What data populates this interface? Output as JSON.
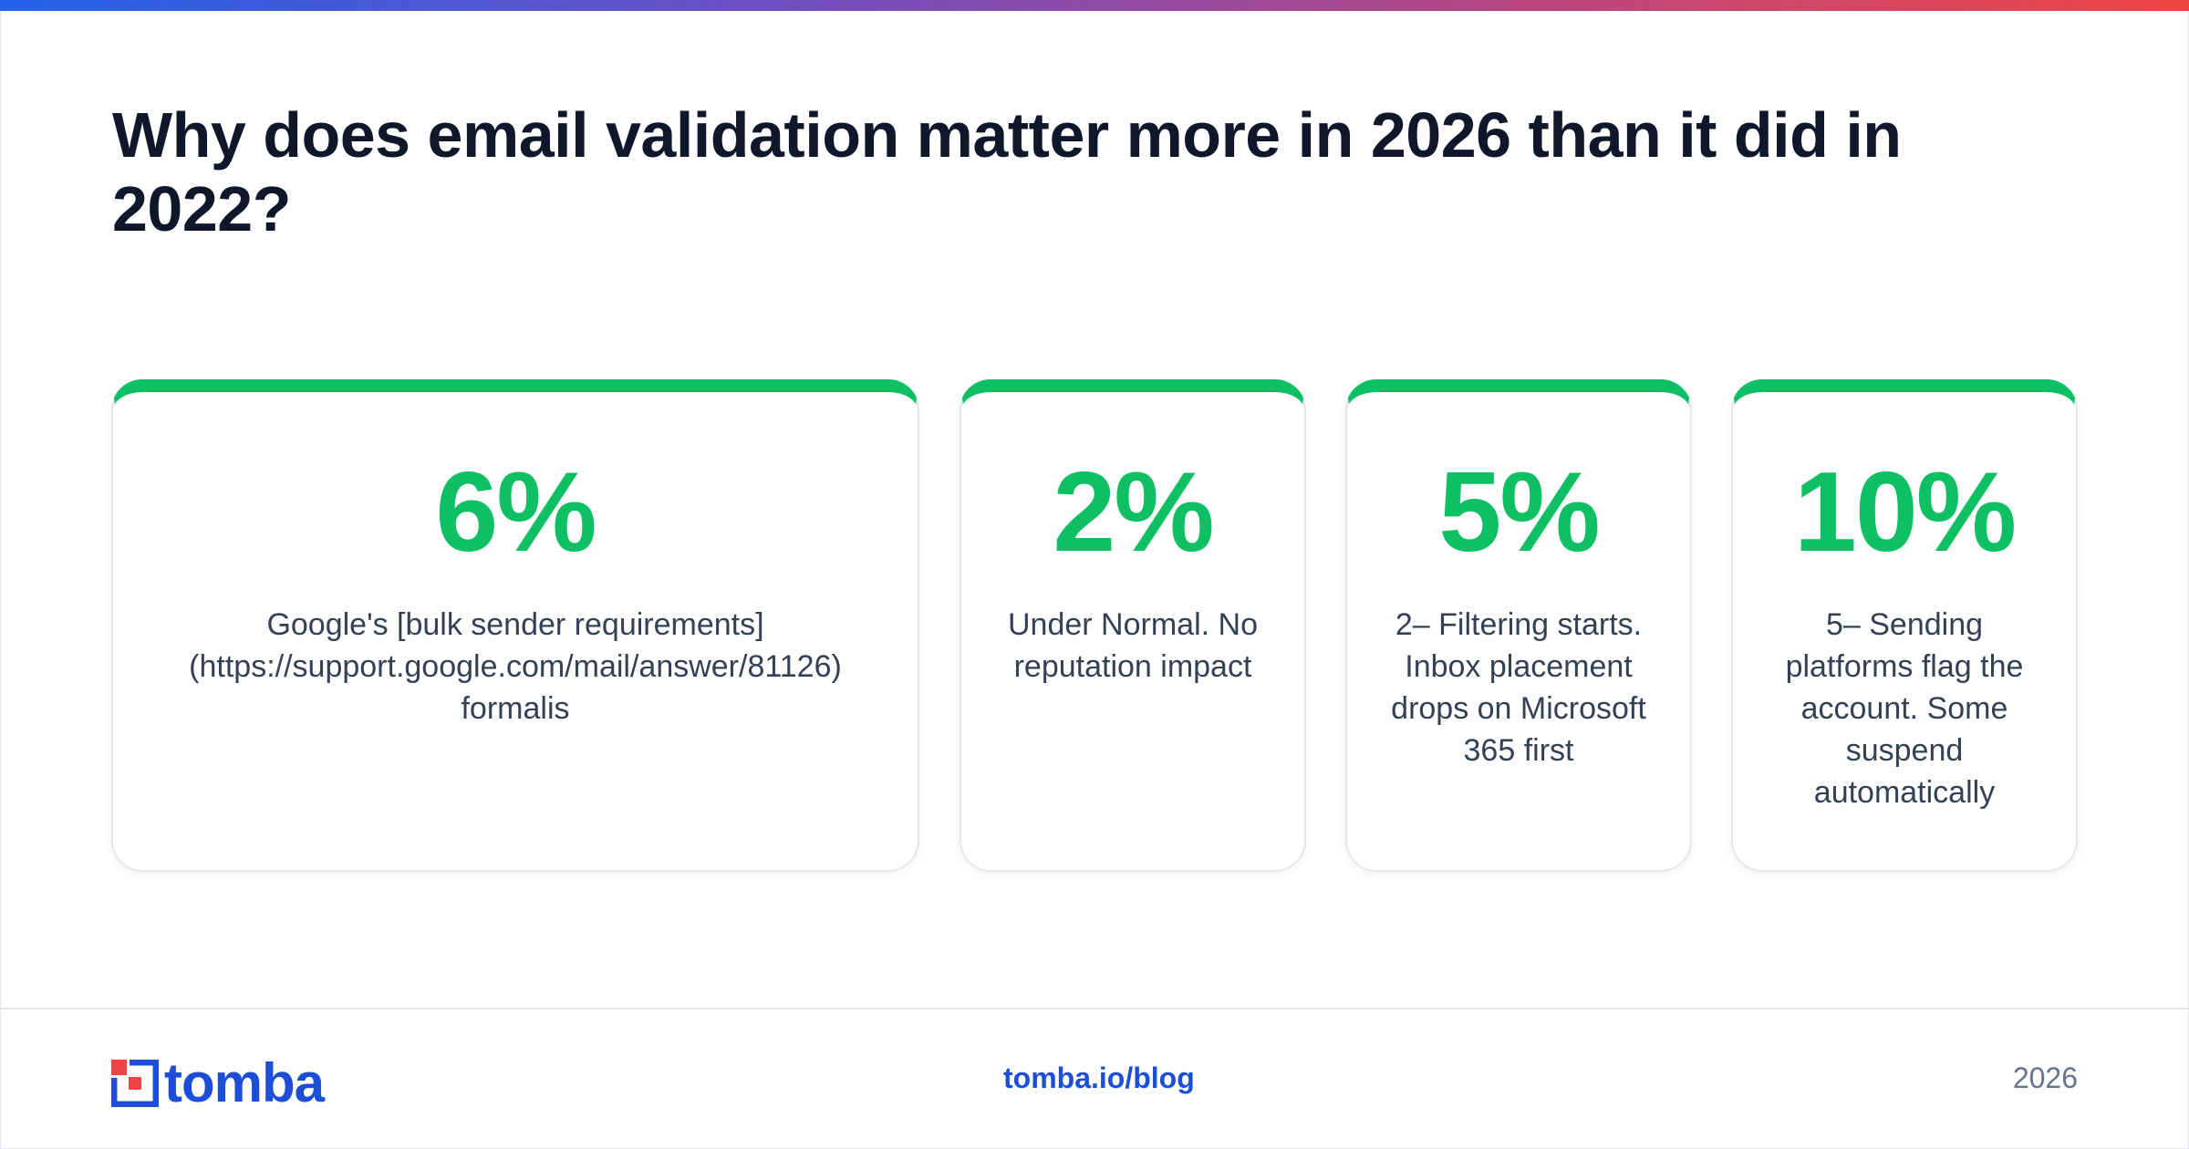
{
  "header": {
    "title": "Why does email validation matter more in 2026 than it did in 2022?"
  },
  "accent_color": "#0fbf63",
  "brand_color": "#1d4ed8",
  "cards": [
    {
      "value": "6%",
      "description": "Google's [bulk sender requirements] (https://support.google.com/mail/answer/81126) formalis"
    },
    {
      "value": "2%",
      "description": "Under Normal. No reputation impact"
    },
    {
      "value": "5%",
      "description": "2– Filtering starts. Inbox placement drops on Microsoft 365 first"
    },
    {
      "value": "10%",
      "description": "5– Sending platforms flag the account. Some suspend automatically"
    }
  ],
  "footer": {
    "logo_text": "tomba",
    "logo_icon": "tomba-logo-icon",
    "link": "tomba.io/blog",
    "year": "2026"
  }
}
